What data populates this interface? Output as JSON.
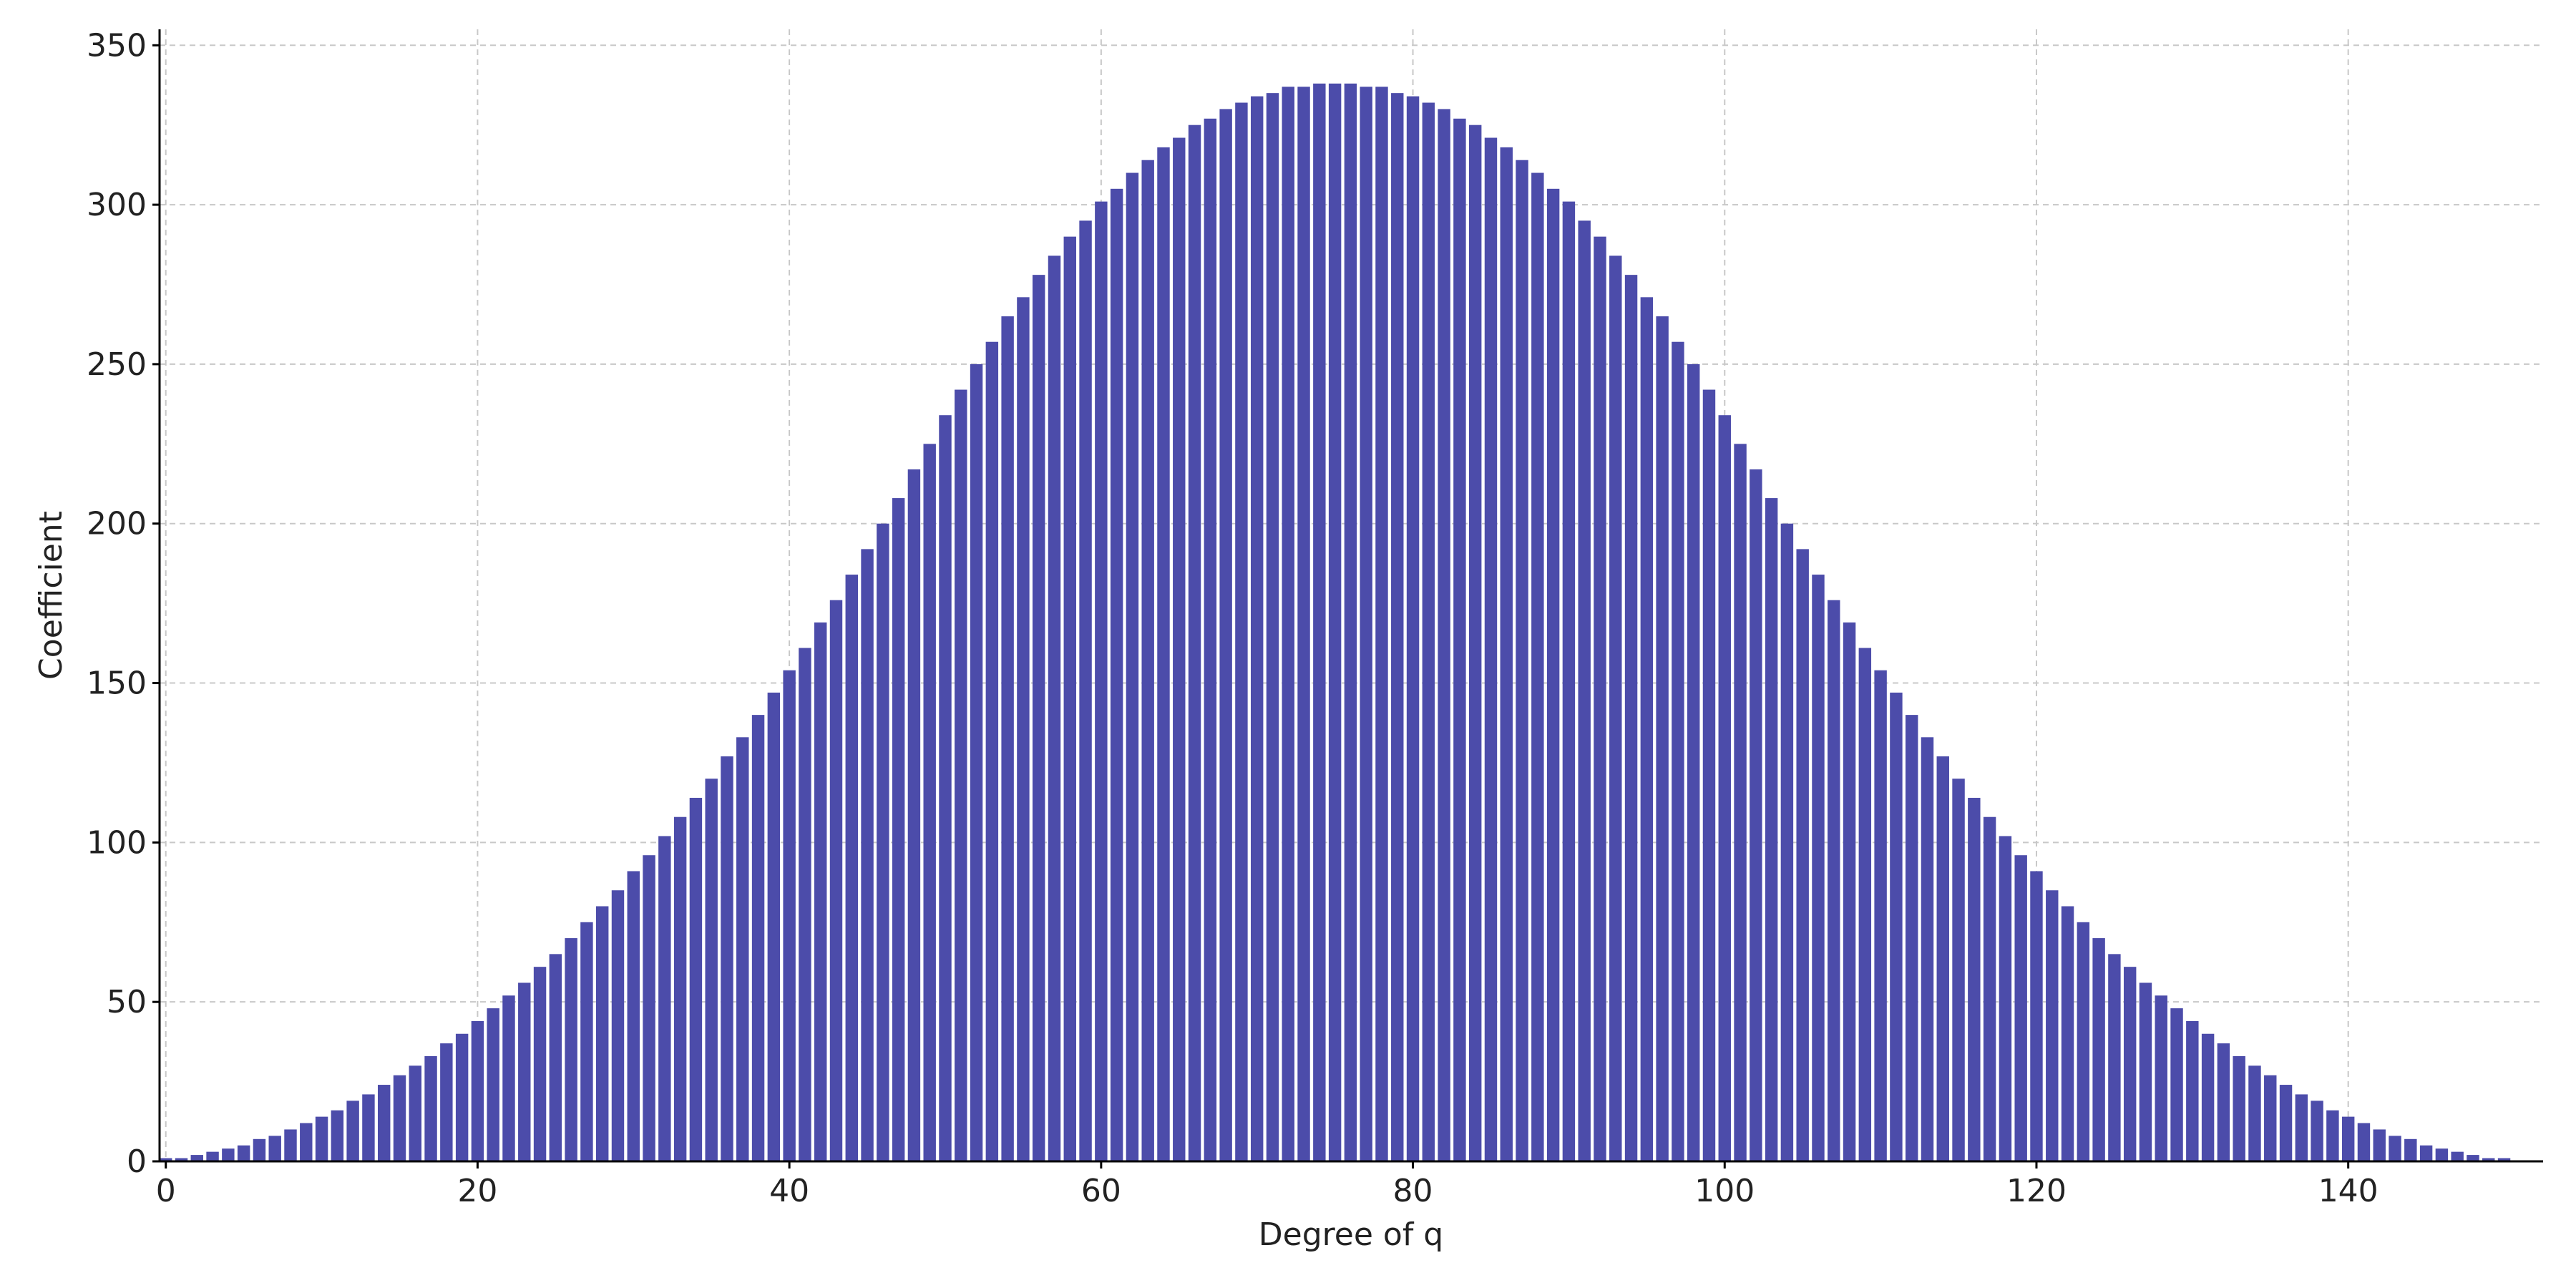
{
  "chart_data": {
    "type": "bar",
    "x_label": "Degree of q",
    "y_label": "Coefficient",
    "x": [
      0,
      1,
      2,
      3,
      4,
      5,
      6,
      7,
      8,
      9,
      10,
      11,
      12,
      13,
      14,
      15,
      16,
      17,
      18,
      19,
      20,
      21,
      22,
      23,
      24,
      25,
      26,
      27,
      28,
      29,
      30,
      31,
      32,
      33,
      34,
      35,
      36,
      37,
      38,
      39,
      40,
      41,
      42,
      43,
      44,
      45,
      46,
      47,
      48,
      49,
      50,
      51,
      52,
      53,
      54,
      55,
      56,
      57,
      58,
      59,
      60,
      61,
      62,
      63,
      64,
      65,
      66,
      67,
      68,
      69,
      70,
      71,
      72,
      73,
      74,
      75,
      76,
      77,
      78,
      79,
      80,
      81,
      82,
      83,
      84,
      85,
      86,
      87,
      88,
      89,
      90,
      91,
      92,
      93,
      94,
      95,
      96,
      97,
      98,
      99,
      100,
      101,
      102,
      103,
      104,
      105,
      106,
      107,
      108,
      109,
      110,
      111,
      112,
      113,
      114,
      115,
      116,
      117,
      118,
      119,
      120,
      121,
      122,
      123,
      124,
      125,
      126,
      127,
      128,
      129,
      130,
      131,
      132,
      133,
      134,
      135,
      136,
      137,
      138,
      139,
      140,
      141,
      142,
      143,
      144,
      145,
      146,
      147,
      148,
      149,
      150
    ],
    "values": [
      1,
      1,
      2,
      3,
      4,
      5,
      7,
      8,
      10,
      12,
      14,
      16,
      19,
      21,
      24,
      27,
      30,
      33,
      37,
      40,
      44,
      48,
      52,
      56,
      61,
      65,
      70,
      75,
      80,
      85,
      91,
      96,
      102,
      108,
      114,
      120,
      127,
      133,
      140,
      147,
      154,
      161,
      169,
      176,
      184,
      192,
      200,
      208,
      217,
      225,
      234,
      242,
      250,
      257,
      265,
      271,
      278,
      284,
      290,
      295,
      301,
      305,
      310,
      314,
      318,
      321,
      325,
      327,
      330,
      332,
      334,
      335,
      337,
      337,
      338,
      338,
      338,
      337,
      337,
      335,
      334,
      332,
      330,
      327,
      325,
      321,
      318,
      314,
      310,
      305,
      301,
      295,
      290,
      284,
      278,
      271,
      265,
      257,
      250,
      242,
      234,
      225,
      217,
      208,
      200,
      192,
      184,
      176,
      169,
      161,
      154,
      147,
      140,
      133,
      127,
      120,
      114,
      108,
      102,
      96,
      91,
      85,
      80,
      75,
      70,
      65,
      61,
      56,
      52,
      48,
      44,
      40,
      37,
      33,
      30,
      27,
      24,
      21,
      19,
      16,
      14,
      12,
      10,
      8,
      7,
      5,
      4,
      3,
      2,
      1,
      1
    ],
    "color": "#4c4caa",
    "bar_width": 0.8,
    "xlim": [
      -0.4,
      152.5
    ],
    "xticks": [
      0,
      20,
      40,
      60,
      80,
      100,
      120,
      140
    ],
    "ylim": [
      0,
      355
    ],
    "yticks": [
      0,
      50,
      100,
      150,
      200,
      250,
      300,
      350
    ],
    "grid": true
  }
}
